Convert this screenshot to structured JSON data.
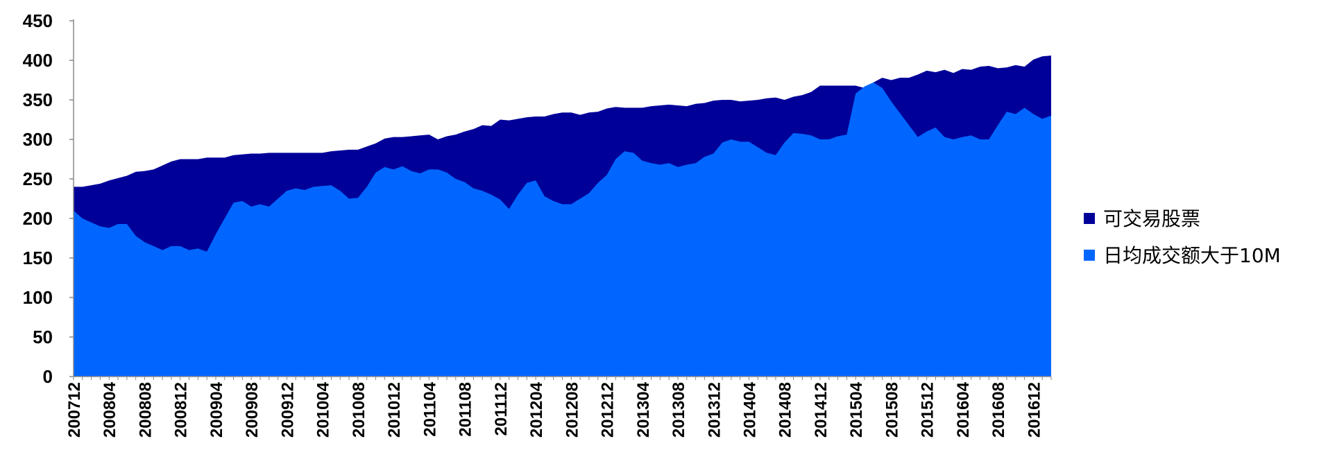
{
  "chart_data": {
    "type": "area",
    "title": "",
    "xlabel": "",
    "ylabel": "",
    "ylim": [
      0,
      450
    ],
    "yticks": [
      0,
      50,
      100,
      150,
      200,
      250,
      300,
      350,
      400,
      450
    ],
    "grid": false,
    "legend_position": "right",
    "x_tick_labels": [
      "200712",
      "200804",
      "200808",
      "200812",
      "200904",
      "200908",
      "200912",
      "201004",
      "201008",
      "201012",
      "201104",
      "201108",
      "201112",
      "201204",
      "201208",
      "201212",
      "201304",
      "201308",
      "201312",
      "201404",
      "201408",
      "201412",
      "201504",
      "201508",
      "201512",
      "201604",
      "201608",
      "201612"
    ],
    "x": [
      "200712",
      "200801",
      "200802",
      "200803",
      "200804",
      "200805",
      "200806",
      "200807",
      "200808",
      "200809",
      "200810",
      "200811",
      "200812",
      "200901",
      "200902",
      "200903",
      "200904",
      "200905",
      "200906",
      "200907",
      "200908",
      "200909",
      "200910",
      "200911",
      "200912",
      "201001",
      "201002",
      "201003",
      "201004",
      "201005",
      "201006",
      "201007",
      "201008",
      "201009",
      "201010",
      "201011",
      "201012",
      "201101",
      "201102",
      "201103",
      "201104",
      "201105",
      "201106",
      "201107",
      "201108",
      "201109",
      "201110",
      "201111",
      "201112",
      "201201",
      "201202",
      "201203",
      "201204",
      "201205",
      "201206",
      "201207",
      "201208",
      "201209",
      "201210",
      "201211",
      "201212",
      "201301",
      "201302",
      "201303",
      "201304",
      "201305",
      "201306",
      "201307",
      "201308",
      "201309",
      "201310",
      "201311",
      "201312",
      "201401",
      "201402",
      "201403",
      "201404",
      "201405",
      "201406",
      "201407",
      "201408",
      "201409",
      "201410",
      "201411",
      "201412",
      "201501",
      "201502",
      "201503",
      "201504",
      "201505",
      "201506",
      "201507",
      "201508",
      "201509",
      "201510",
      "201511",
      "201512",
      "201601",
      "201602",
      "201603",
      "201604",
      "201605",
      "201606",
      "201607",
      "201608",
      "201609",
      "201610",
      "201611",
      "201612",
      "201701",
      "201702"
    ],
    "series": [
      {
        "name": "可交易股票",
        "color": "#000099",
        "values": [
          240,
          240,
          242,
          244,
          248,
          251,
          254,
          259,
          260,
          262,
          267,
          272,
          275,
          275,
          275,
          277,
          277,
          277,
          280,
          281,
          282,
          282,
          283,
          283,
          283,
          283,
          283,
          283,
          283,
          285,
          286,
          287,
          287,
          291,
          295,
          301,
          303,
          303,
          304,
          305,
          306,
          300,
          304,
          306,
          310,
          313,
          318,
          317,
          325,
          324,
          326,
          328,
          329,
          329,
          332,
          334,
          334,
          331,
          334,
          335,
          339,
          341,
          340,
          340,
          340,
          342,
          343,
          344,
          343,
          342,
          345,
          346,
          349,
          350,
          350,
          348,
          349,
          350,
          352,
          353,
          350,
          354,
          356,
          360,
          368,
          368,
          368,
          368,
          368,
          365,
          372,
          378,
          375,
          378,
          378,
          382,
          387,
          385,
          388,
          384,
          389,
          388,
          392,
          393,
          390,
          391,
          394,
          392,
          401,
          405,
          406
        ]
      },
      {
        "name": "日均成交额大于10M",
        "color": "#0066ff",
        "values": [
          210,
          200,
          195,
          190,
          188,
          193,
          193,
          178,
          170,
          165,
          160,
          165,
          165,
          160,
          162,
          158,
          180,
          200,
          220,
          222,
          215,
          218,
          215,
          225,
          235,
          238,
          236,
          240,
          241,
          242,
          235,
          225,
          226,
          240,
          258,
          265,
          262,
          266,
          260,
          257,
          262,
          262,
          258,
          250,
          246,
          238,
          235,
          230,
          224,
          212,
          230,
          245,
          248,
          228,
          222,
          218,
          218,
          225,
          232,
          245,
          255,
          275,
          285,
          283,
          273,
          270,
          268,
          270,
          265,
          268,
          270,
          278,
          282,
          296,
          300,
          297,
          297,
          290,
          283,
          280,
          296,
          308,
          307,
          305,
          300,
          300,
          304,
          306,
          358,
          367,
          372,
          365,
          348,
          333,
          318,
          303,
          310,
          315,
          303,
          300,
          303,
          305,
          300,
          300,
          318,
          335,
          332,
          340,
          332,
          326,
          330
        ]
      }
    ]
  }
}
